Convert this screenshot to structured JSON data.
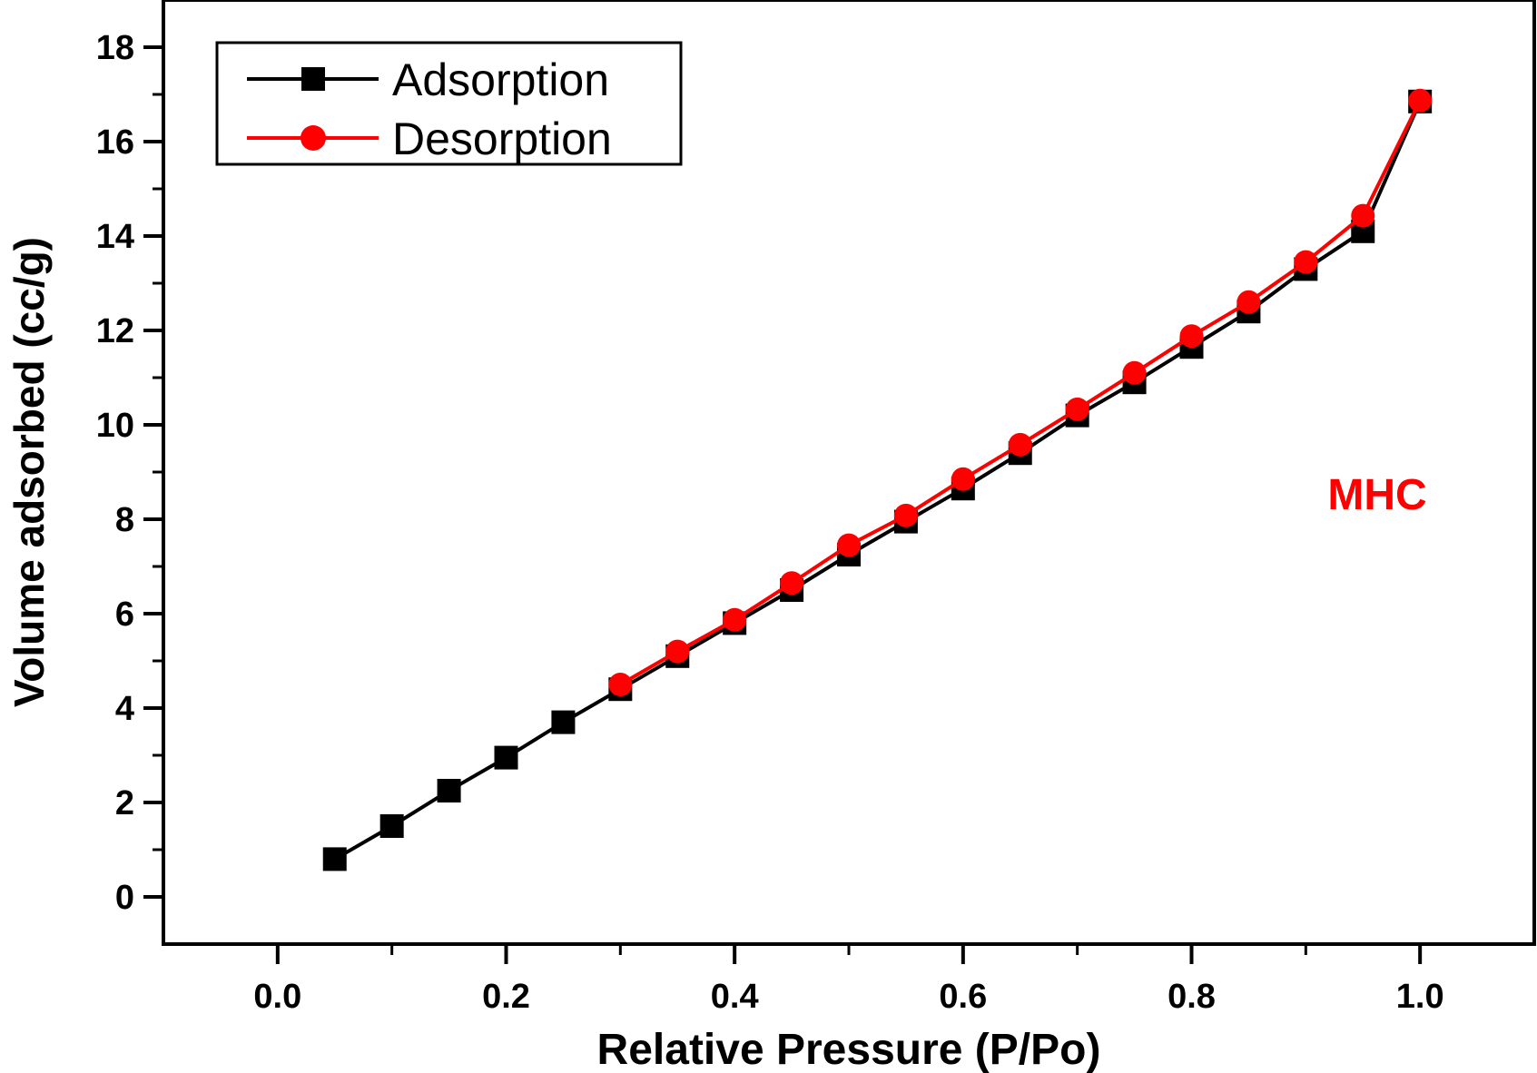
{
  "chart_data": {
    "type": "line",
    "title": "",
    "xlabel": "Relative Pressure (P/Po)",
    "ylabel": "Volume adsorbed (cc/g)",
    "xlim": [
      -0.1,
      1.1
    ],
    "ylim": [
      -1,
      19
    ],
    "xticks": [
      0.0,
      0.2,
      0.4,
      0.6,
      0.8,
      1.0
    ],
    "xtick_labels": [
      "0.0",
      "0.2",
      "0.4",
      "0.6",
      "0.8",
      "1.0"
    ],
    "yticks": [
      0,
      2,
      4,
      6,
      8,
      10,
      12,
      14,
      16,
      18
    ],
    "ytick_labels": [
      "0",
      "2",
      "4",
      "6",
      "8",
      "10",
      "12",
      "14",
      "16",
      "18"
    ],
    "grid": false,
    "legend_position": "top-left",
    "annotation": {
      "text": "MHC",
      "color": "#ff0000"
    },
    "series": [
      {
        "name": "Adsorption",
        "color": "#000000",
        "marker": "square",
        "x": [
          0.05,
          0.1,
          0.15,
          0.2,
          0.25,
          0.3,
          0.35,
          0.4,
          0.45,
          0.5,
          0.55,
          0.6,
          0.65,
          0.7,
          0.75,
          0.8,
          0.85,
          0.9,
          0.95,
          1.0
        ],
        "y": [
          0.8,
          1.5,
          2.25,
          2.95,
          3.7,
          4.4,
          5.1,
          5.8,
          6.5,
          7.25,
          7.95,
          8.65,
          9.4,
          10.2,
          10.9,
          11.65,
          12.4,
          13.3,
          14.1,
          16.85
        ]
      },
      {
        "name": "Desorption",
        "color": "#ff0000",
        "marker": "circle",
        "x": [
          0.3,
          0.35,
          0.4,
          0.45,
          0.5,
          0.55,
          0.6,
          0.65,
          0.7,
          0.75,
          0.8,
          0.85,
          0.9,
          0.95,
          1.0
        ],
        "y": [
          4.5,
          5.2,
          5.87,
          6.65,
          7.45,
          8.08,
          8.85,
          9.58,
          10.33,
          11.1,
          11.88,
          12.6,
          13.45,
          14.43,
          16.87
        ]
      }
    ]
  }
}
